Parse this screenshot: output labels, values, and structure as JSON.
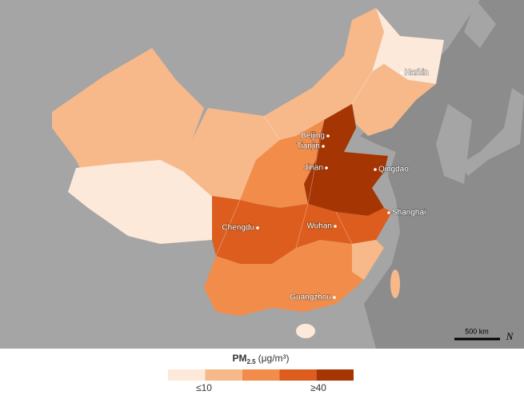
{
  "map": {
    "cities": [
      {
        "label": "Harbin"
      },
      {
        "label": "Beijing"
      },
      {
        "label": "Tianjin"
      },
      {
        "label": "Jinan"
      },
      {
        "label": "Qingdao"
      },
      {
        "label": "Shanghai"
      },
      {
        "label": "Wuhan"
      },
      {
        "label": "Chengdu"
      },
      {
        "label": "Guangzhou"
      }
    ],
    "scale_bar": "500 km",
    "north": "N",
    "legend": {
      "title": "PM",
      "title_sub": "2.5",
      "title_unit": "(μg/m³)",
      "colors": [
        "#fde9da",
        "#f7b98a",
        "#f28c4a",
        "#dc5d1e",
        "#a63504"
      ],
      "min_label": "≤10",
      "max_label": "≥40"
    }
  }
}
